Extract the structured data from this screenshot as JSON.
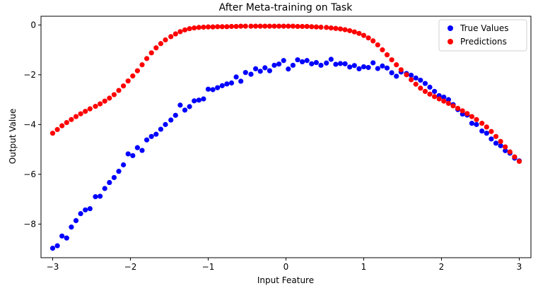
{
  "chart_data": {
    "type": "scatter",
    "title": "After Meta-training on Task",
    "xlabel": "Input Feature",
    "ylabel": "Output Value",
    "xlim": [
      -3.15,
      3.15
    ],
    "ylim": [
      -9.35,
      0.35
    ],
    "xticks": [
      -3,
      -2,
      -1,
      0,
      1,
      2,
      3
    ],
    "yticks": [
      -8,
      -6,
      -4,
      -2,
      0
    ],
    "xtick_labels": [
      "−3",
      "−2",
      "−1",
      "0",
      "1",
      "2",
      "3"
    ],
    "ytick_labels": [
      "−8",
      "−6",
      "−4",
      "−2",
      "0"
    ],
    "legend_position": "upper right",
    "series": [
      {
        "name": "True Values",
        "color": "#0000ff",
        "x": [
          -3.0,
          -2.94,
          -2.88,
          -2.82,
          -2.76,
          -2.7,
          -2.64,
          -2.58,
          -2.52,
          -2.45,
          -2.39,
          -2.33,
          -2.27,
          -2.21,
          -2.15,
          -2.09,
          -2.03,
          -1.97,
          -1.91,
          -1.85,
          -1.79,
          -1.73,
          -1.67,
          -1.61,
          -1.55,
          -1.48,
          -1.42,
          -1.36,
          -1.3,
          -1.24,
          -1.18,
          -1.12,
          -1.06,
          -1.0,
          -0.94,
          -0.88,
          -0.82,
          -0.76,
          -0.7,
          -0.64,
          -0.58,
          -0.52,
          -0.45,
          -0.39,
          -0.33,
          -0.27,
          -0.21,
          -0.15,
          -0.09,
          -0.03,
          0.03,
          0.09,
          0.15,
          0.21,
          0.27,
          0.33,
          0.39,
          0.45,
          0.52,
          0.58,
          0.64,
          0.7,
          0.76,
          0.82,
          0.88,
          0.94,
          1.0,
          1.06,
          1.12,
          1.18,
          1.24,
          1.3,
          1.36,
          1.42,
          1.48,
          1.55,
          1.61,
          1.67,
          1.73,
          1.79,
          1.85,
          1.91,
          1.97,
          2.03,
          2.09,
          2.15,
          2.21,
          2.27,
          2.33,
          2.39,
          2.45,
          2.52,
          2.58,
          2.64,
          2.7,
          2.76,
          2.82,
          2.88,
          2.94,
          3.0
        ],
        "y": [
          -8.97,
          -8.87,
          -8.48,
          -8.56,
          -8.12,
          -7.86,
          -7.58,
          -7.43,
          -7.38,
          -6.9,
          -6.88,
          -6.57,
          -6.33,
          -6.13,
          -5.88,
          -5.62,
          -5.18,
          -5.25,
          -4.93,
          -5.04,
          -4.62,
          -4.48,
          -4.39,
          -4.19,
          -4.0,
          -3.82,
          -3.63,
          -3.22,
          -3.42,
          -3.28,
          -3.05,
          -3.02,
          -2.97,
          -2.58,
          -2.6,
          -2.52,
          -2.44,
          -2.37,
          -2.33,
          -2.09,
          -2.26,
          -1.91,
          -1.98,
          -1.76,
          -1.86,
          -1.72,
          -1.84,
          -1.62,
          -1.57,
          -1.43,
          -1.77,
          -1.62,
          -1.4,
          -1.48,
          -1.43,
          -1.56,
          -1.51,
          -1.62,
          -1.53,
          -1.38,
          -1.58,
          -1.55,
          -1.56,
          -1.69,
          -1.63,
          -1.76,
          -1.68,
          -1.71,
          -1.52,
          -1.75,
          -1.65,
          -1.73,
          -1.92,
          -2.06,
          -1.89,
          -1.95,
          -2.02,
          -2.13,
          -2.22,
          -2.35,
          -2.5,
          -2.67,
          -2.84,
          -2.9,
          -3.0,
          -3.2,
          -3.4,
          -3.58,
          -3.62,
          -3.95,
          -4.0,
          -4.26,
          -4.35,
          -4.58,
          -4.75,
          -4.85,
          -5.05,
          -5.15,
          -5.35,
          -5.46
        ]
      },
      {
        "name": "Predictions",
        "color": "#ff0000",
        "x": [
          -3.0,
          -2.94,
          -2.88,
          -2.82,
          -2.76,
          -2.7,
          -2.64,
          -2.58,
          -2.52,
          -2.45,
          -2.39,
          -2.33,
          -2.27,
          -2.21,
          -2.15,
          -2.09,
          -2.03,
          -1.97,
          -1.91,
          -1.85,
          -1.79,
          -1.73,
          -1.67,
          -1.61,
          -1.55,
          -1.48,
          -1.42,
          -1.36,
          -1.3,
          -1.24,
          -1.18,
          -1.12,
          -1.06,
          -1.0,
          -0.94,
          -0.88,
          -0.82,
          -0.76,
          -0.7,
          -0.64,
          -0.58,
          -0.52,
          -0.45,
          -0.39,
          -0.33,
          -0.27,
          -0.21,
          -0.15,
          -0.09,
          -0.03,
          0.03,
          0.09,
          0.15,
          0.21,
          0.27,
          0.33,
          0.39,
          0.45,
          0.52,
          0.58,
          0.64,
          0.7,
          0.76,
          0.82,
          0.88,
          0.94,
          1.0,
          1.06,
          1.12,
          1.18,
          1.24,
          1.3,
          1.36,
          1.42,
          1.48,
          1.55,
          1.61,
          1.67,
          1.73,
          1.79,
          1.85,
          1.91,
          1.97,
          2.03,
          2.09,
          2.15,
          2.21,
          2.27,
          2.33,
          2.39,
          2.45,
          2.52,
          2.58,
          2.64,
          2.7,
          2.76,
          2.82,
          2.88,
          2.94,
          3.0
        ],
        "y": [
          -4.35,
          -4.2,
          -4.05,
          -3.92,
          -3.8,
          -3.68,
          -3.57,
          -3.47,
          -3.37,
          -3.27,
          -3.17,
          -3.06,
          -2.94,
          -2.8,
          -2.63,
          -2.45,
          -2.25,
          -2.05,
          -1.84,
          -1.6,
          -1.35,
          -1.12,
          -0.92,
          -0.75,
          -0.6,
          -0.47,
          -0.36,
          -0.27,
          -0.2,
          -0.15,
          -0.12,
          -0.1,
          -0.09,
          -0.08,
          -0.08,
          -0.07,
          -0.07,
          -0.07,
          -0.06,
          -0.06,
          -0.05,
          -0.05,
          -0.05,
          -0.05,
          -0.05,
          -0.05,
          -0.05,
          -0.05,
          -0.05,
          -0.05,
          -0.05,
          -0.05,
          -0.06,
          -0.06,
          -0.06,
          -0.07,
          -0.08,
          -0.09,
          -0.1,
          -0.12,
          -0.14,
          -0.16,
          -0.19,
          -0.23,
          -0.28,
          -0.34,
          -0.42,
          -0.52,
          -0.64,
          -0.8,
          -1.0,
          -1.2,
          -1.4,
          -1.6,
          -1.8,
          -2.0,
          -2.2,
          -2.38,
          -2.54,
          -2.67,
          -2.78,
          -2.88,
          -2.97,
          -3.06,
          -3.15,
          -3.25,
          -3.35,
          -3.45,
          -3.56,
          -3.68,
          -3.8,
          -3.95,
          -4.1,
          -4.28,
          -4.48,
          -4.68,
          -4.9,
          -5.1,
          -5.3,
          -5.48
        ]
      }
    ]
  }
}
